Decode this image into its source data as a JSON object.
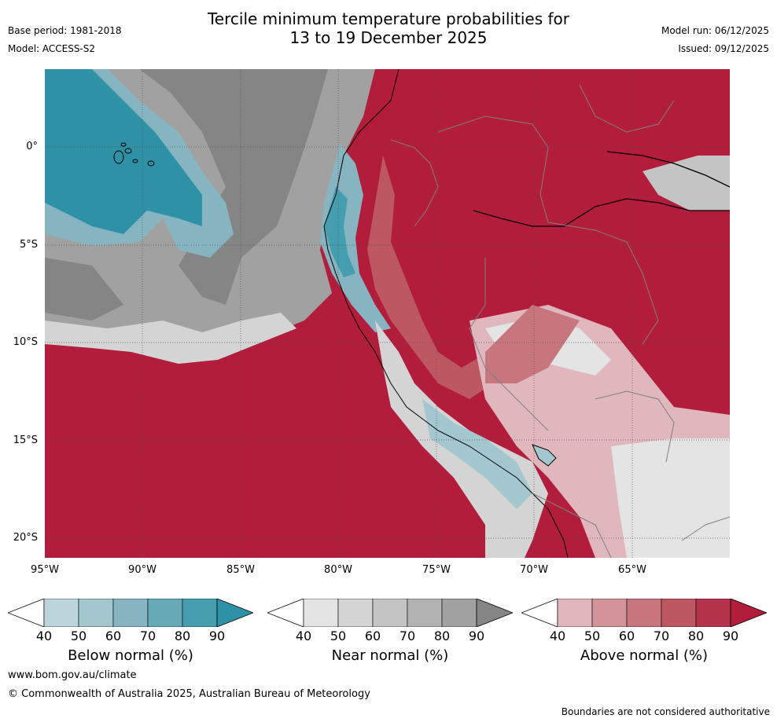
{
  "header": {
    "title_line1": "Tercile minimum temperature probabilities for",
    "title_line2": "13 to 19 December 2025",
    "base_period": "Base period: 1981-2018",
    "model": "Model: ACCESS-S2",
    "model_run": "Model run: 06/12/2025",
    "issued": "Issued: 09/12/2025"
  },
  "map": {
    "lat_labels": [
      "0°",
      "5°S",
      "10°S",
      "15°S",
      "20°S"
    ],
    "lon_labels": [
      "95°W",
      "90°W",
      "85°W",
      "80°W",
      "75°W",
      "70°W",
      "65°W"
    ]
  },
  "colorbars": [
    {
      "name": "below",
      "label": "Below normal (%)",
      "ticks": [
        "40",
        "50",
        "60",
        "70",
        "80",
        "90"
      ],
      "colors": [
        "#bcd5dc",
        "#a4c6cf",
        "#86b4c0",
        "#67a9b7",
        "#449eb0",
        "#2f91a6"
      ]
    },
    {
      "name": "near",
      "label": "Near normal (%)",
      "ticks": [
        "40",
        "50",
        "60",
        "70",
        "80",
        "90"
      ],
      "colors": [
        "#e4e4e4",
        "#d4d4d4",
        "#c4c4c4",
        "#b3b3b3",
        "#a1a1a1",
        "#858585"
      ]
    },
    {
      "name": "above",
      "label": "Above normal (%)",
      "ticks": [
        "40",
        "50",
        "60",
        "70",
        "80",
        "90"
      ],
      "colors": [
        "#e0b7bc",
        "#d39499",
        "#c8767e",
        "#bd5761",
        "#b4334a",
        "#b11d3a"
      ]
    }
  ],
  "footer": {
    "website": "www.bom.gov.au/climate",
    "copyright": "© Commonwealth of Australia 2025, Australian Bureau of Meteorology",
    "disclaimer": "Boundaries are not considered authoritative"
  }
}
